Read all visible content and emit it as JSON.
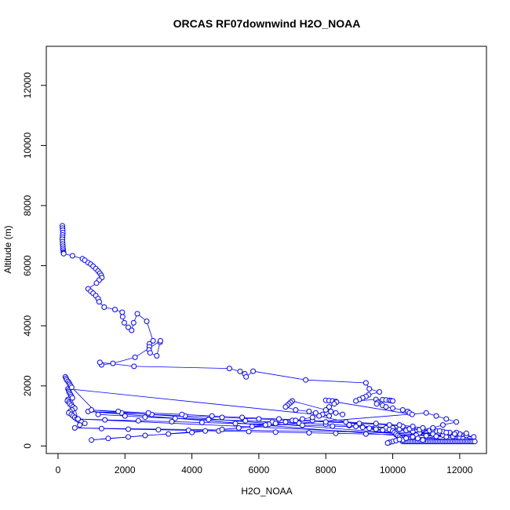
{
  "chart_data": {
    "type": "scatter",
    "title": "ORCAS RF07downwind H2O_NOAA",
    "xlabel": "H2O_NOAA",
    "ylabel": "Altitude (m)",
    "xlim": [
      -350,
      12800
    ],
    "ylim": [
      -250,
      13300
    ],
    "x_ticks": [
      0,
      2000,
      4000,
      6000,
      8000,
      10000,
      12000
    ],
    "y_ticks": [
      0,
      2000,
      4000,
      6000,
      8000,
      10000,
      12000
    ],
    "grid": false,
    "legend": "none",
    "marker": "open-circle",
    "connected": true,
    "color": "#0000ff",
    "series": [
      {
        "x": [
          130,
          135,
          140,
          145,
          140,
          135,
          130,
          135,
          140,
          145,
          150,
          155,
          160,
          165,
          170,
          430,
          730,
          800,
          900,
          980,
          1050,
          1130,
          1200,
          1250,
          1290,
          1310,
          1230,
          1150,
          900,
          980,
          1050,
          1130,
          1200,
          1230,
          1380,
          1700,
          1920,
          1930,
          1980,
          2100,
          2200,
          2260,
          2370,
          2650,
          2840,
          2730,
          2730,
          2720,
          2750,
          2950,
          3050,
          3060,
          2300,
          1640,
          1300,
          1250,
          2270,
          5120,
          5440,
          5580,
          5620,
          5830,
          7400,
          9200,
          9300,
          9600,
          9280,
          9200,
          9100,
          9000,
          8900,
          9500,
          9700,
          9800,
          9900,
          9950,
          10000,
          9550,
          9520,
          9700,
          9800,
          10000,
          10300,
          10450,
          10500,
          10580,
          8000,
          8100,
          8200,
          8300,
          8320,
          8250,
          8100,
          8000,
          8150,
          8300,
          8500,
          7000,
          6950,
          6900,
          6850,
          6800,
          7100,
          7500,
          7700,
          7900,
          8100,
          300,
          320,
          330,
          350,
          380,
          400,
          430,
          300,
          280,
          330,
          350,
          400,
          450,
          500,
          420,
          360,
          320,
          400,
          450,
          500,
          560,
          630,
          700,
          800,
          650,
          220,
          240,
          260,
          300,
          330,
          350,
          380,
          410,
          1200,
          2000,
          2600,
          3500,
          4500,
          5600,
          6400,
          7200,
          8000,
          8700,
          9500,
          10000,
          10200,
          10400,
          10600,
          10800,
          11200,
          11500,
          11800,
          12000,
          12100,
          12200,
          12300,
          12400,
          900,
          1900,
          2800,
          3800,
          4900,
          6000,
          7000,
          8000,
          9000,
          9900,
          10300,
          10600,
          10900,
          11300,
          11700,
          12000,
          12200,
          12420,
          600,
          1400,
          2400,
          3400,
          4300,
          5300,
          6300,
          7300,
          8200,
          9100,
          10000,
          10500,
          10800,
          11100,
          11500,
          11900,
          12200,
          500,
          1300,
          2100,
          3000,
          3900,
          4800,
          5700,
          6500,
          7500,
          8300,
          9200,
          10100,
          10700,
          11000,
          11300,
          11600,
          1000,
          1800,
          2700,
          3700,
          4600,
          5500,
          6600,
          7600,
          8600,
          9500,
          10200,
          10600,
          10900,
          11200,
          11400,
          11600,
          11850,
          10300,
          10350,
          10400,
          10450,
          10500,
          10550,
          10600,
          10650,
          10700,
          10750,
          10800,
          10850,
          10900,
          10950,
          11000,
          11050,
          11100,
          11150,
          11200,
          11250,
          11300,
          11350,
          11400,
          11450,
          11500,
          11550,
          11600,
          11650,
          11700,
          11750,
          11800,
          11850,
          11900,
          11950,
          12000,
          12050,
          12100,
          12150,
          12200,
          12250,
          12300,
          12350,
          12400,
          12450,
          9800,
          9900,
          10000,
          10050,
          10100,
          10150,
          10200,
          10250,
          10300,
          10000,
          9900,
          9850,
          10100,
          10200,
          10400,
          10600,
          8700,
          8900,
          9100,
          9300,
          9500,
          9700,
          7800,
          7600,
          7300,
          7100,
          6800,
          6500,
          6200,
          5800,
          5400,
          4900,
          4400,
          4000,
          3300,
          2600,
          2100,
          1500,
          1000,
          11000,
          11300,
          11600,
          11900,
          11500,
          11200,
          10600,
          10750,
          10900
        ],
        "y": [
          7330,
          7250,
          7180,
          7100,
          7020,
          6950,
          6880,
          6800,
          6720,
          6650,
          6580,
          6520,
          6460,
          6420,
          6400,
          6330,
          6230,
          6180,
          6100,
          6050,
          5980,
          5900,
          5820,
          5750,
          5680,
          5600,
          5520,
          5420,
          5230,
          5150,
          5080,
          5000,
          4900,
          4800,
          4620,
          4540,
          4450,
          4300,
          4100,
          3950,
          3850,
          4100,
          4400,
          4150,
          3500,
          3400,
          3300,
          3200,
          3100,
          3000,
          3450,
          3500,
          2950,
          2750,
          2700,
          2780,
          2650,
          2580,
          2480,
          2400,
          2300,
          2490,
          2200,
          2100,
          1900,
          1800,
          1700,
          1650,
          1600,
          1550,
          1500,
          1550,
          1540,
          1530,
          1520,
          1510,
          1500,
          1450,
          1400,
          1350,
          1300,
          1260,
          1200,
          1150,
          1100,
          1050,
          1520,
          1510,
          1500,
          1480,
          1460,
          1400,
          1300,
          1200,
          1150,
          1100,
          1050,
          1500,
          1450,
          1400,
          1350,
          1300,
          1200,
          1150,
          1100,
          1050,
          1000,
          1900,
          1850,
          1800,
          1750,
          1700,
          1650,
          1600,
          1550,
          1500,
          1450,
          1400,
          1350,
          1300,
          1250,
          1200,
          1150,
          1100,
          1050,
          1000,
          950,
          900,
          850,
          800,
          750,
          700,
          2300,
          2250,
          2200,
          2150,
          2100,
          2050,
          2000,
          1950,
          1050,
          1000,
          960,
          920,
          880,
          840,
          800,
          760,
          720,
          680,
          640,
          600,
          560,
          520,
          480,
          440,
          400,
          360,
          320,
          280,
          240,
          200,
          170,
          150,
          1150,
          1100,
          1050,
          1000,
          950,
          900,
          850,
          800,
          750,
          700,
          650,
          600,
          550,
          500,
          450,
          400,
          350,
          300,
          900,
          870,
          840,
          810,
          780,
          750,
          720,
          690,
          660,
          630,
          600,
          570,
          540,
          510,
          480,
          450,
          420,
          600,
          580,
          560,
          540,
          520,
          500,
          480,
          460,
          440,
          420,
          400,
          380,
          360,
          340,
          320,
          300,
          1200,
          1150,
          1100,
          1050,
          1000,
          950,
          900,
          850,
          800,
          750,
          700,
          650,
          600,
          550,
          500,
          450,
          400,
          150,
          150,
          150,
          150,
          150,
          150,
          150,
          150,
          150,
          150,
          150,
          150,
          150,
          150,
          150,
          150,
          150,
          150,
          150,
          150,
          150,
          150,
          150,
          150,
          150,
          150,
          150,
          150,
          150,
          150,
          150,
          150,
          150,
          150,
          150,
          150,
          150,
          150,
          150,
          150,
          150,
          150,
          150,
          150,
          600,
          550,
          500,
          450,
          400,
          350,
          300,
          250,
          200,
          150,
          120,
          100,
          180,
          220,
          260,
          300,
          700,
          650,
          620,
          590,
          560,
          530,
          1000,
          950,
          900,
          850,
          800,
          750,
          700,
          650,
          600,
          550,
          500,
          450,
          400,
          350,
          300,
          250,
          200,
          1100,
          1000,
          900,
          800,
          700,
          600,
          300,
          250,
          200
        ]
      }
    ]
  }
}
